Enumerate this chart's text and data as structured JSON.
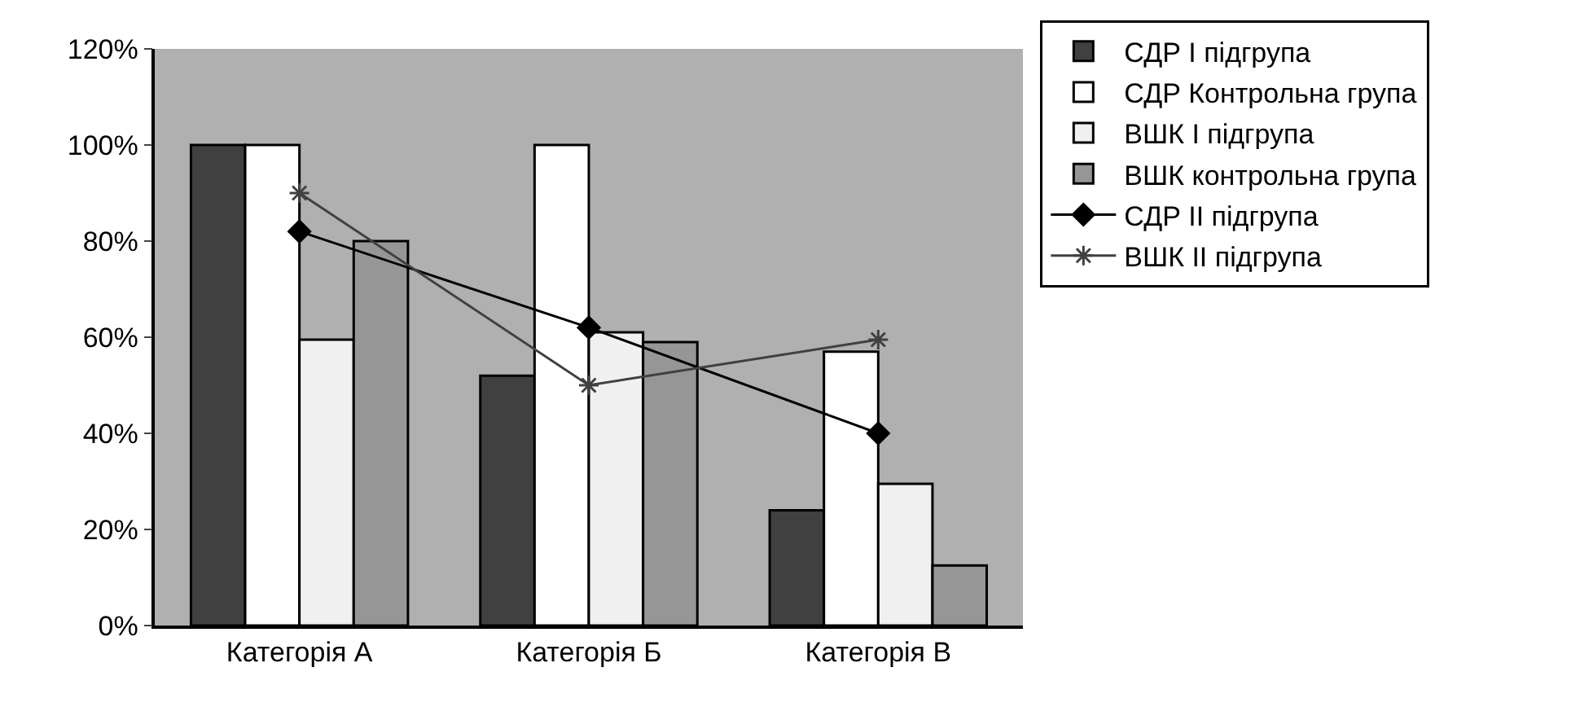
{
  "chart_data": {
    "type": "bar",
    "categories": [
      "Категорія А",
      "Категорія Б",
      "Категорія В"
    ],
    "series": [
      {
        "name": "СДР I підгрупа",
        "color": "#404040",
        "values": [
          100,
          52,
          24
        ]
      },
      {
        "name": "СДР Контрольна група",
        "color": "#ffffff",
        "values": [
          100,
          100,
          57
        ]
      },
      {
        "name": "ВШК I підгрупа",
        "color": "#f0f0f0",
        "values": [
          59.5,
          61,
          29.5
        ]
      },
      {
        "name": "ВШК контрольна група",
        "color": "#969696",
        "values": [
          80,
          59,
          12.5
        ]
      },
      {
        "name": "СДР II підгрупа",
        "type": "line",
        "color": "#000000",
        "marker": "diamond",
        "values": [
          82,
          62,
          40
        ]
      },
      {
        "name": "ВШК II підгрупа",
        "type": "line",
        "color": "#404040",
        "marker": "cross",
        "values": [
          90,
          50,
          59.5
        ]
      }
    ],
    "ylim": [
      0,
      120
    ],
    "yticks": [
      {
        "value": 0,
        "label": "0%"
      },
      {
        "value": 20,
        "label": "20%"
      },
      {
        "value": 40,
        "label": "40%"
      },
      {
        "value": 60,
        "label": "60%"
      },
      {
        "value": 80,
        "label": "80%"
      },
      {
        "value": 100,
        "label": "100%"
      },
      {
        "value": 120,
        "label": "120%"
      }
    ],
    "grid": false,
    "legend": "right"
  }
}
